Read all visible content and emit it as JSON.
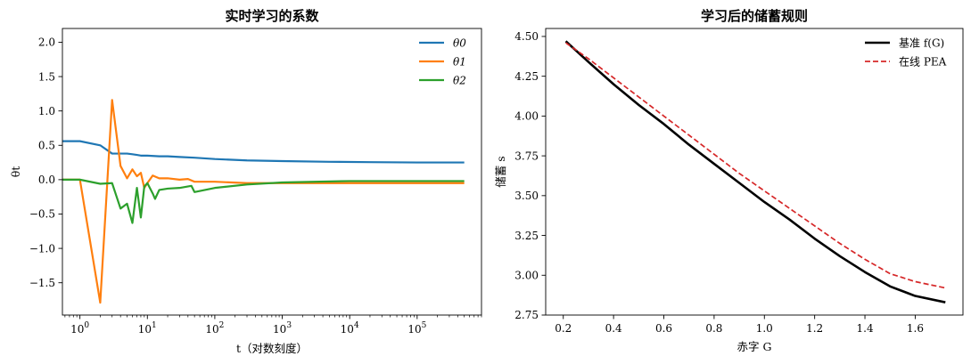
{
  "chart_data": [
    {
      "type": "line",
      "title": "实时学习的系数",
      "xlabel": "t（对数刻度）",
      "ylabel": "θt",
      "xscale": "log",
      "xlim": [
        0.55,
        900000
      ],
      "ylim": [
        -1.97,
        2.2
      ],
      "xticks": [
        1,
        10,
        100,
        1000,
        10000,
        100000
      ],
      "xtick_labels": [
        {
          "base": "10",
          "exp": "0"
        },
        {
          "base": "10",
          "exp": "1"
        },
        {
          "base": "10",
          "exp": "2"
        },
        {
          "base": "10",
          "exp": "3"
        },
        {
          "base": "10",
          "exp": "4"
        },
        {
          "base": "10",
          "exp": "5"
        }
      ],
      "yticks": [
        -1.5,
        -1.0,
        -0.5,
        0.0,
        0.5,
        1.0,
        1.5,
        2.0
      ],
      "ytick_labels": [
        "−1.5",
        "−1.0",
        "−0.5",
        "0.0",
        "0.5",
        "1.0",
        "1.5",
        "2.0"
      ],
      "grid": false,
      "legend_position": "top-right",
      "series": [
        {
          "name": "θ0",
          "sym": "θ",
          "sub": "0",
          "color": "#1f77b4",
          "x": [
            0.55,
            1,
            2,
            3,
            4,
            5,
            6,
            7,
            8,
            10,
            15,
            20,
            30,
            50,
            100,
            300,
            1000,
            5000,
            20000,
            100000,
            500000
          ],
          "y": [
            0.56,
            0.56,
            0.5,
            0.38,
            0.38,
            0.38,
            0.37,
            0.36,
            0.35,
            0.35,
            0.34,
            0.34,
            0.33,
            0.32,
            0.3,
            0.28,
            0.27,
            0.26,
            0.255,
            0.25,
            0.25
          ]
        },
        {
          "name": "θ1",
          "sym": "θ",
          "sub": "1",
          "color": "#ff7f0e",
          "x": [
            0.55,
            1,
            2,
            3,
            4,
            5,
            6,
            7,
            8,
            9,
            10,
            12,
            15,
            20,
            30,
            40,
            50,
            60,
            100,
            300,
            1000,
            10000,
            100000,
            500000
          ],
          "y": [
            0.0,
            0.0,
            -1.79,
            1.16,
            0.2,
            0.02,
            0.15,
            0.05,
            0.1,
            -0.12,
            -0.05,
            0.06,
            0.02,
            0.02,
            0.0,
            0.01,
            -0.03,
            -0.03,
            -0.03,
            -0.05,
            -0.05,
            -0.05,
            -0.05,
            -0.05
          ]
        },
        {
          "name": "θ2",
          "sym": "θ",
          "sub": "2",
          "color": "#2ca02c",
          "x": [
            0.55,
            1,
            2,
            3,
            4,
            5,
            6,
            7,
            8,
            9,
            10,
            12,
            13,
            15,
            20,
            30,
            45,
            50,
            100,
            300,
            1000,
            10000,
            100000,
            500000
          ],
          "y": [
            0.0,
            0.0,
            -0.06,
            -0.05,
            -0.42,
            -0.35,
            -0.63,
            -0.12,
            -0.55,
            -0.1,
            -0.05,
            -0.2,
            -0.28,
            -0.15,
            -0.13,
            -0.12,
            -0.09,
            -0.18,
            -0.12,
            -0.07,
            -0.04,
            -0.02,
            -0.02,
            -0.02
          ]
        }
      ]
    },
    {
      "type": "line",
      "title": "学习后的储蓄规则",
      "xlabel": "赤字 G",
      "ylabel": "储蓄 s",
      "xlim": [
        0.13,
        1.79
      ],
      "ylim": [
        2.75,
        4.55
      ],
      "xticks": [
        0.2,
        0.4,
        0.6,
        0.8,
        1.0,
        1.2,
        1.4,
        1.6
      ],
      "xtick_labels": [
        "0.2",
        "0.4",
        "0.6",
        "0.8",
        "1.0",
        "1.2",
        "1.4",
        "1.6"
      ],
      "yticks": [
        2.75,
        3.0,
        3.25,
        3.5,
        3.75,
        4.0,
        4.25,
        4.5
      ],
      "ytick_labels": [
        "2.75",
        "3.00",
        "3.25",
        "3.50",
        "3.75",
        "4.00",
        "4.25",
        "4.50"
      ],
      "grid": false,
      "legend_position": "top-right",
      "series": [
        {
          "name": "基准 f(G)",
          "color": "#000000",
          "dash": "none",
          "width": 2.6,
          "x": [
            0.21,
            0.3,
            0.4,
            0.5,
            0.6,
            0.7,
            0.8,
            0.9,
            1.0,
            1.1,
            1.2,
            1.3,
            1.4,
            1.5,
            1.6,
            1.72
          ],
          "y": [
            4.47,
            4.34,
            4.2,
            4.07,
            3.95,
            3.82,
            3.7,
            3.58,
            3.46,
            3.35,
            3.23,
            3.12,
            3.02,
            2.93,
            2.87,
            2.83
          ]
        },
        {
          "name": "在线 PEA",
          "color": "#d62728",
          "dash": "6,3",
          "width": 1.7,
          "x": [
            0.21,
            0.3,
            0.4,
            0.5,
            0.6,
            0.7,
            0.8,
            0.9,
            1.0,
            1.1,
            1.2,
            1.3,
            1.4,
            1.5,
            1.6,
            1.72
          ],
          "y": [
            4.46,
            4.36,
            4.24,
            4.12,
            4.0,
            3.88,
            3.76,
            3.64,
            3.53,
            3.42,
            3.31,
            3.2,
            3.1,
            3.01,
            2.96,
            2.92
          ]
        }
      ]
    }
  ]
}
